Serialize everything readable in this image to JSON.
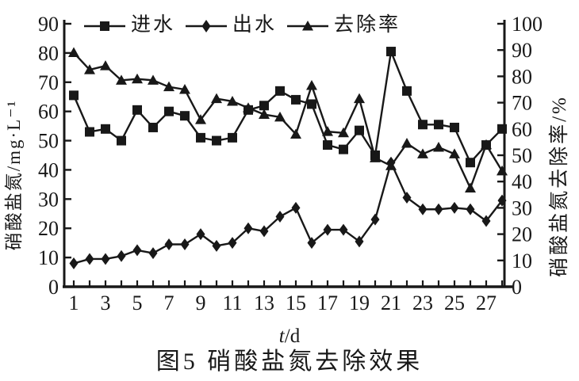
{
  "figure": {
    "caption": "图5 硝酸盐氮去除效果",
    "xlabel_variable": "t",
    "xlabel_unit": "/d",
    "left_axis_title": "硝酸盐氮/mg·L⁻¹",
    "right_axis_title": "硝酸盐氮去除率/%"
  },
  "legend": [
    {
      "id": "influent",
      "label": "进水",
      "marker": "square"
    },
    {
      "id": "effluent",
      "label": "出水",
      "marker": "diamond"
    },
    {
      "id": "removal-rate",
      "label": "去除率",
      "marker": "triangle"
    }
  ],
  "chart_data": {
    "type": "line",
    "title": "图5 硝酸盐氮去除效果",
    "xlabel": "t/d",
    "ink_color": "#181818",
    "background_color": "#ffffff",
    "grid": false,
    "legend_position": "top",
    "x": [
      1,
      2,
      3,
      4,
      5,
      6,
      7,
      8,
      9,
      10,
      11,
      12,
      13,
      14,
      15,
      16,
      17,
      18,
      19,
      20,
      21,
      22,
      23,
      24,
      25,
      26,
      27,
      28
    ],
    "x_tick_labels": [
      1,
      3,
      5,
      7,
      9,
      11,
      13,
      15,
      17,
      19,
      21,
      23,
      25,
      27
    ],
    "left_axis": {
      "label": "硝酸盐氮/mg·L⁻¹",
      "min": 0,
      "max": 90,
      "ticks": [
        0,
        10,
        20,
        30,
        40,
        50,
        60,
        70,
        80,
        90
      ]
    },
    "right_axis": {
      "label": "硝酸盐氮去除率/%",
      "min": 0,
      "max": 100,
      "ticks": [
        0,
        10,
        20,
        30,
        40,
        50,
        60,
        70,
        80,
        90,
        100
      ]
    },
    "series": [
      {
        "id": "influent",
        "name": "进水",
        "marker": "square",
        "axis": "left",
        "values": [
          65.5,
          53,
          54,
          50,
          60.5,
          54.5,
          60,
          58.5,
          51,
          50,
          51,
          60.5,
          62,
          67,
          64,
          62.5,
          48.5,
          47,
          53.5,
          45,
          80.5,
          67,
          55.5,
          55.5,
          54.5,
          42.5,
          48.5,
          54
        ]
      },
      {
        "id": "effluent",
        "name": "出水",
        "marker": "diamond",
        "axis": "left",
        "values": [
          8,
          9.5,
          9.5,
          10.5,
          12.5,
          11.5,
          14.5,
          14.5,
          18,
          14,
          15,
          20,
          19,
          24,
          27,
          15,
          19.5,
          19.5,
          15.5,
          23,
          42.5,
          30.5,
          26.5,
          26.5,
          27,
          26.5,
          22.5,
          29.5
        ]
      },
      {
        "id": "removal-rate",
        "name": "去除率",
        "marker": "triangle",
        "axis": "right",
        "values": [
          89,
          82.5,
          84,
          78.5,
          79,
          78.5,
          76,
          75,
          63.5,
          71.5,
          70.5,
          68,
          65.5,
          64.5,
          58,
          76.5,
          59,
          58.5,
          71.5,
          49,
          46,
          54.5,
          50.5,
          53,
          50.5,
          37.5,
          54,
          44
        ]
      }
    ]
  }
}
